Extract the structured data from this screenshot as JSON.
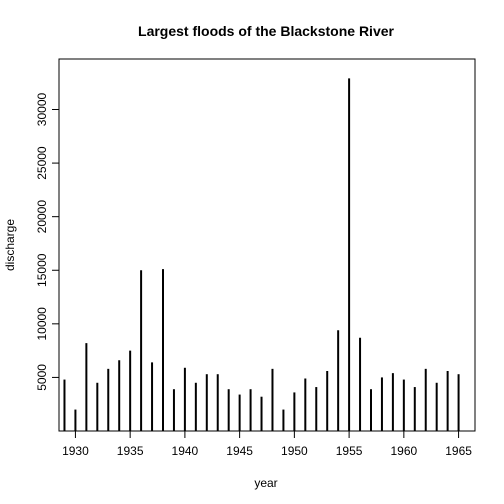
{
  "chart_data": {
    "type": "bar",
    "title": "Largest floods of the Blackstone River",
    "xlabel": "year",
    "ylabel": "discharge",
    "x": [
      1929,
      1930,
      1931,
      1932,
      1933,
      1934,
      1935,
      1936,
      1937,
      1938,
      1939,
      1940,
      1941,
      1942,
      1943,
      1944,
      1945,
      1946,
      1947,
      1948,
      1949,
      1950,
      1951,
      1952,
      1953,
      1954,
      1955,
      1956,
      1957,
      1958,
      1959,
      1960,
      1961,
      1962,
      1963,
      1964,
      1965
    ],
    "values": [
      4800,
      2000,
      8200,
      4500,
      5800,
      6600,
      7500,
      15000,
      6400,
      15100,
      3900,
      5900,
      4500,
      5300,
      5300,
      3900,
      3400,
      3900,
      3200,
      5800,
      2000,
      3600,
      4900,
      4100,
      5600,
      9400,
      32900,
      8700,
      3900,
      5000,
      5400,
      4800,
      4100,
      5800,
      4500,
      5600,
      5300
    ],
    "xlim": [
      1928.5,
      1966.5
    ],
    "ylim": [
      0,
      33500
    ],
    "xticks": [
      "1930",
      "1935",
      "1940",
      "1945",
      "1950",
      "1955",
      "1960",
      "1965"
    ],
    "yticks": [
      "5000",
      "10000",
      "15000",
      "20000",
      "25000",
      "30000"
    ],
    "grid": false,
    "colors": {
      "line": "#000000",
      "background": "#ffffff"
    }
  }
}
